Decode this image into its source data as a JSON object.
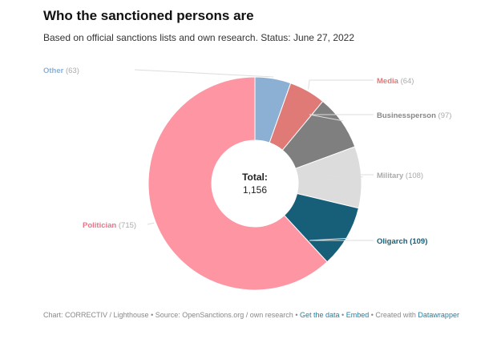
{
  "title": "Who the sanctioned persons are",
  "subtitle": "Based on official sanctions lists and own research. Status: June 27, 2022",
  "chart_data": {
    "type": "pie",
    "variant": "donut",
    "center_label": "Total:",
    "center_value": "1,156",
    "slices": [
      {
        "label": "Other",
        "value": 63,
        "value_text": "(63)",
        "color": "#8cb0d3"
      },
      {
        "label": "Media",
        "value": 64,
        "value_text": "(64)",
        "color": "#e07a76"
      },
      {
        "label": "Businessperson",
        "value": 97,
        "value_text": "(97)",
        "color": "#7f7f7f"
      },
      {
        "label": "Military",
        "value": 108,
        "value_text": "(108)",
        "color": "#dcdcdc"
      },
      {
        "label": "Oligarch",
        "value": 109,
        "value_text": "(109)",
        "color": "#175f78"
      },
      {
        "label": "Politician",
        "value": 715,
        "value_text": "(715)",
        "color": "#fd95a3"
      }
    ],
    "label_text_colors": {
      "Other": "#8cb0d3",
      "Media": "#e07a76",
      "Businessperson": "#888888",
      "Military": "#aaaaaa",
      "Oligarch": "#175f78",
      "Politician": "#e87585"
    }
  },
  "footer": {
    "credit": "Chart: CORRECTIV / Lighthouse",
    "source": "Source: OpenSanctions.org / own research",
    "get_data": "Get the data",
    "embed": "Embed",
    "created_with": "Created with",
    "datawrapper": "Datawrapper",
    "separator": " • "
  }
}
